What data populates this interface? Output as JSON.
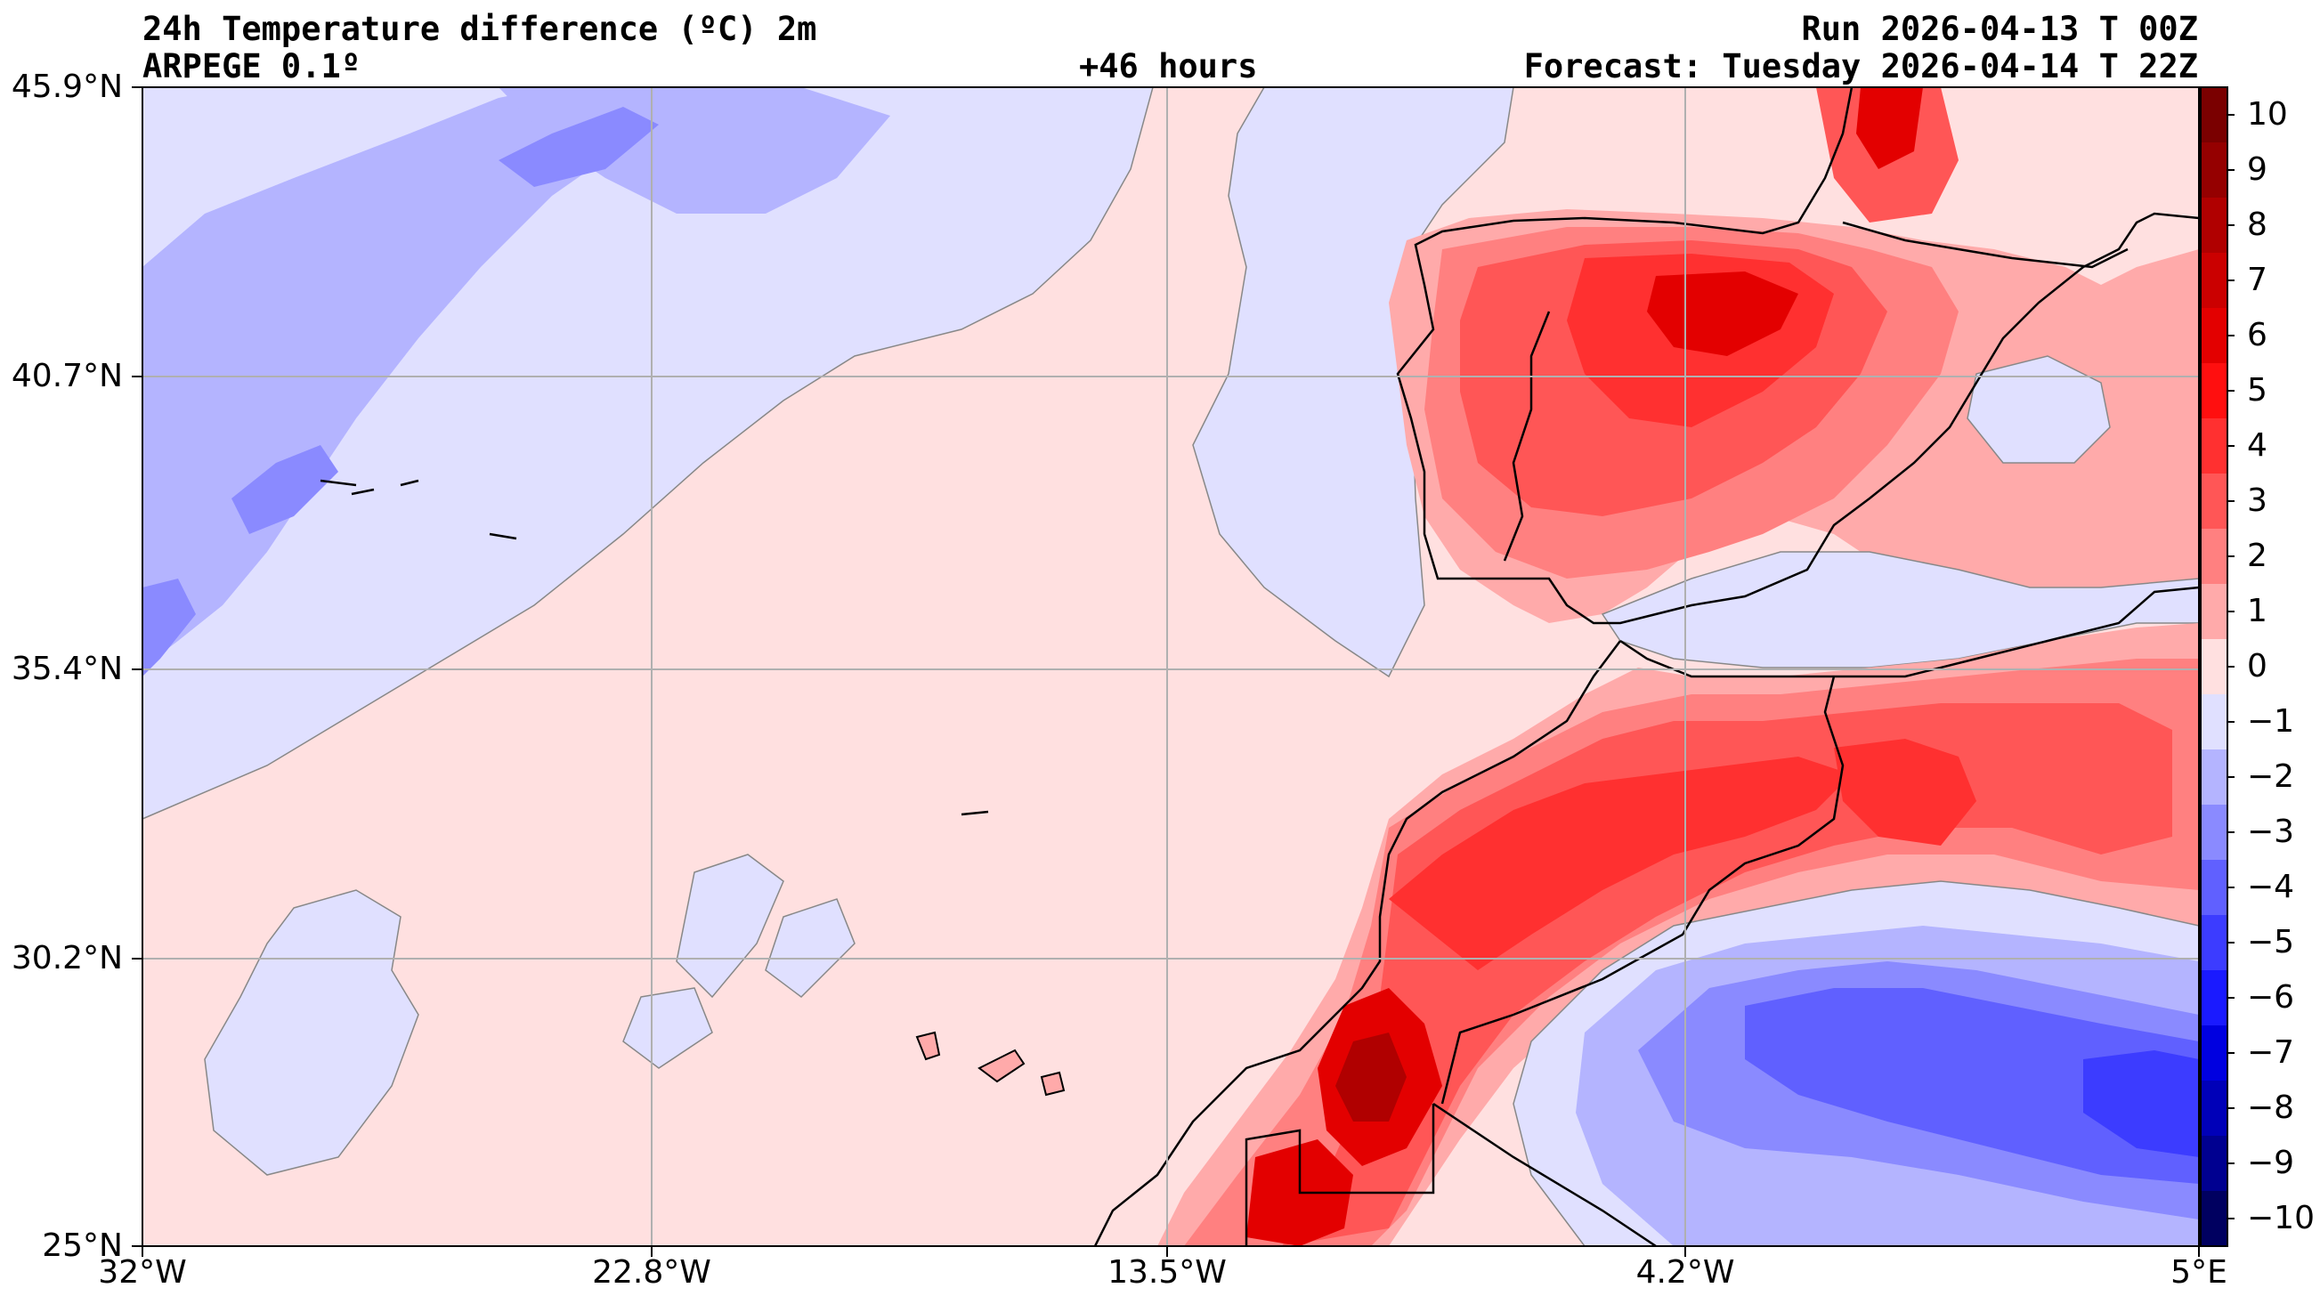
{
  "header": {
    "title": "24h Temperature difference (ºC) 2m",
    "model": "ARPEGE 0.1º",
    "lead": "+46 hours",
    "run": "Run 2026-04-13 T 00Z",
    "forecast": "Forecast: Tuesday 2026-04-14 T 22Z"
  },
  "axes": {
    "lat_labels": [
      "45.9°N",
      "40.7°N",
      "35.4°N",
      "30.2°N",
      "25°N"
    ],
    "lon_labels": [
      "32°W",
      "22.8°W",
      "13.5°W",
      "4.2°W",
      "5°E"
    ]
  },
  "colorbar": {
    "labels": [
      "10",
      "9",
      "8",
      "7",
      "6",
      "5",
      "4",
      "3",
      "2",
      "1",
      "0",
      "−1",
      "−2",
      "−3",
      "−4",
      "−5",
      "−6",
      "−7",
      "−8",
      "−9",
      "−10"
    ],
    "colors": [
      "#7a0000",
      "#950000",
      "#b00000",
      "#cb0000",
      "#e30000",
      "#ff0f0f",
      "#ff3030",
      "#ff5656",
      "#ff8080",
      "#ffaaaa",
      "#ffe0e0",
      "#e0e0ff",
      "#b4b4ff",
      "#8a8aff",
      "#6060ff",
      "#3c3cff",
      "#1a1aff",
      "#0000e0",
      "#0000b8",
      "#000090",
      "#000060"
    ]
  },
  "map_colors": {
    "sea": "#ffe0e0",
    "light_blue": "#e0e0ff",
    "blue1": "#b4b4ff",
    "blue2": "#8a8aff",
    "blue3": "#6060ff",
    "blue4": "#3c3cff",
    "red1": "#ffaaaa",
    "red2": "#ff8080",
    "red3": "#ff5656",
    "red4": "#ff3030",
    "red5": "#e30000",
    "red6": "#b00000"
  }
}
